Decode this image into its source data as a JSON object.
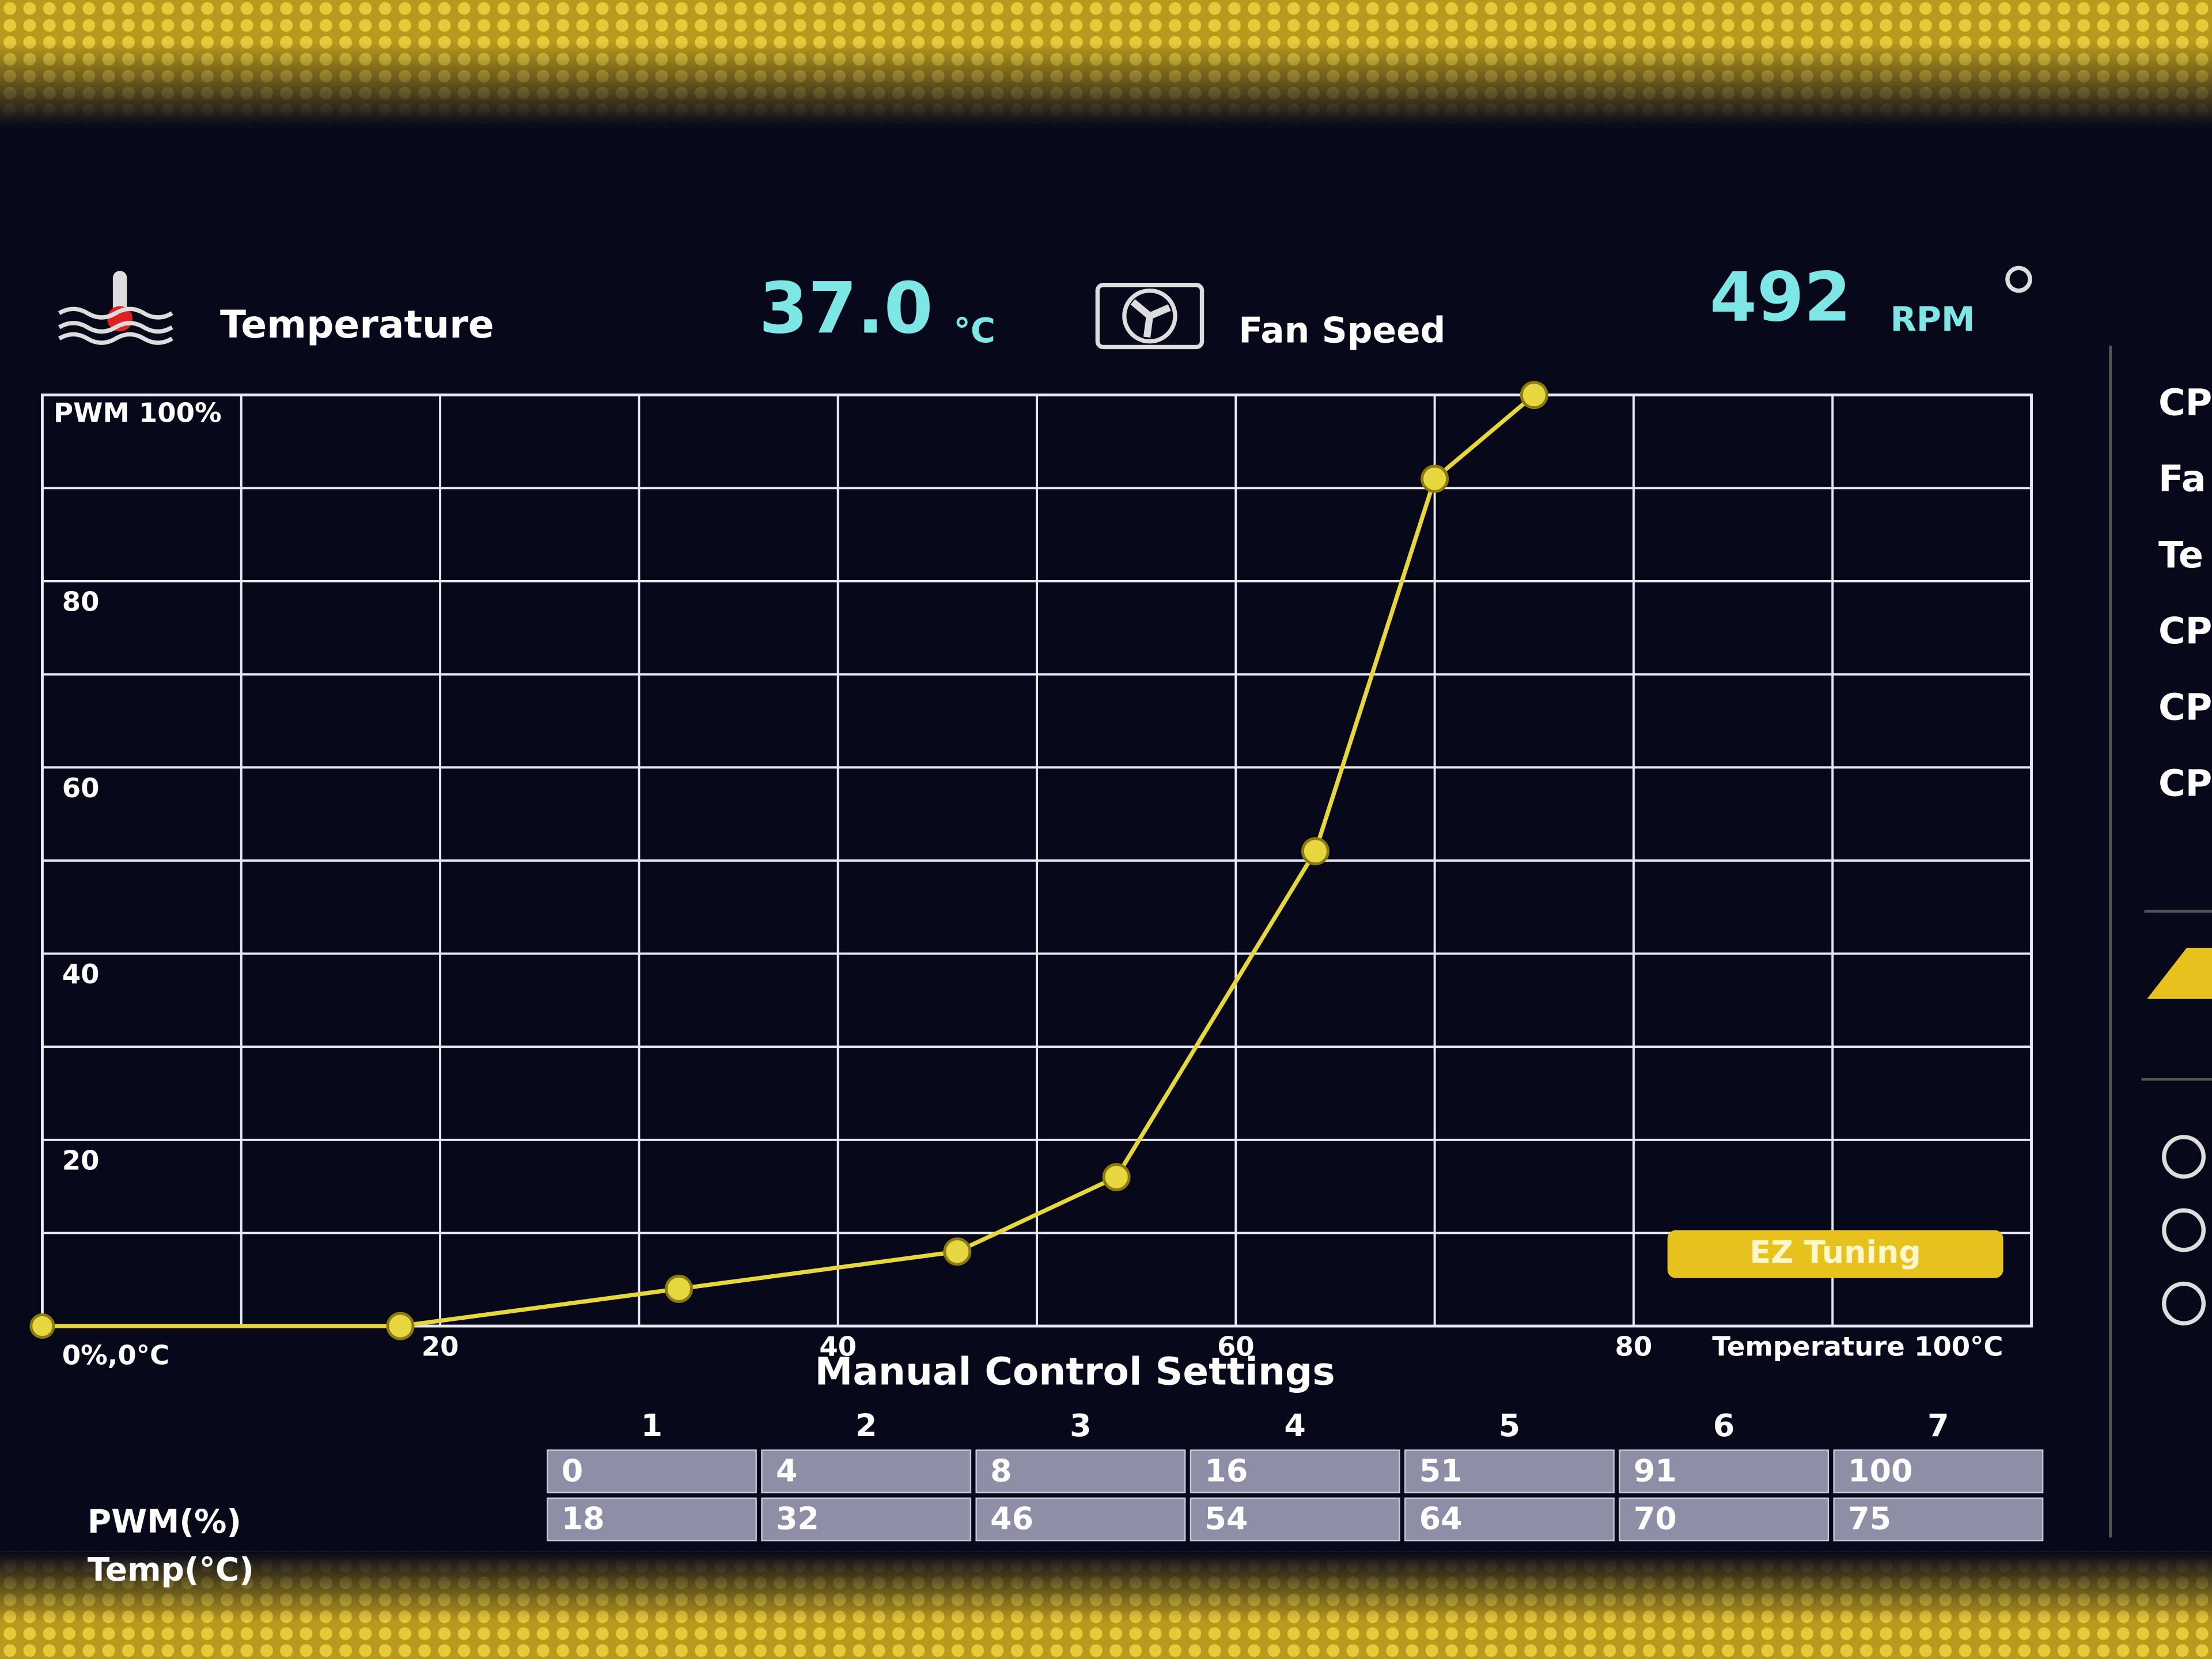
{
  "header": {
    "temperature_label": "Temperature",
    "temperature_value": "37.0",
    "temperature_unit": "°C",
    "fan_label": "Fan Speed",
    "fan_value": "492",
    "fan_unit": "RPM"
  },
  "chart_data": {
    "type": "line",
    "y_label": "PWM 100%",
    "x_label": "Temperature 100°C",
    "origin_label": "0%,0°C",
    "x": [
      18,
      32,
      46,
      54,
      64,
      70,
      75
    ],
    "values": [
      0,
      4,
      8,
      16,
      51,
      91,
      100
    ],
    "color": "#e6d640",
    "xlim": [
      0,
      100
    ],
    "ylim": [
      0,
      100
    ],
    "xticks": [
      20,
      40,
      60,
      80
    ],
    "yticks": [
      20,
      40,
      60,
      80
    ],
    "minor_xticks": [
      10,
      30,
      50,
      70,
      90
    ],
    "minor_yticks": [
      10,
      30,
      50,
      70,
      90
    ],
    "grid": true
  },
  "button": {
    "label": "EZ Tuning"
  },
  "table": {
    "title": "Manual Control Settings",
    "columns": [
      1,
      2,
      3,
      4,
      5,
      6,
      7
    ],
    "row_labels": [
      "PWM(%)",
      "Temp(°C)"
    ]
  },
  "sidebar": {
    "items": [
      "CP",
      "Fa",
      "Te",
      "CP",
      "CP",
      "CP"
    ]
  }
}
